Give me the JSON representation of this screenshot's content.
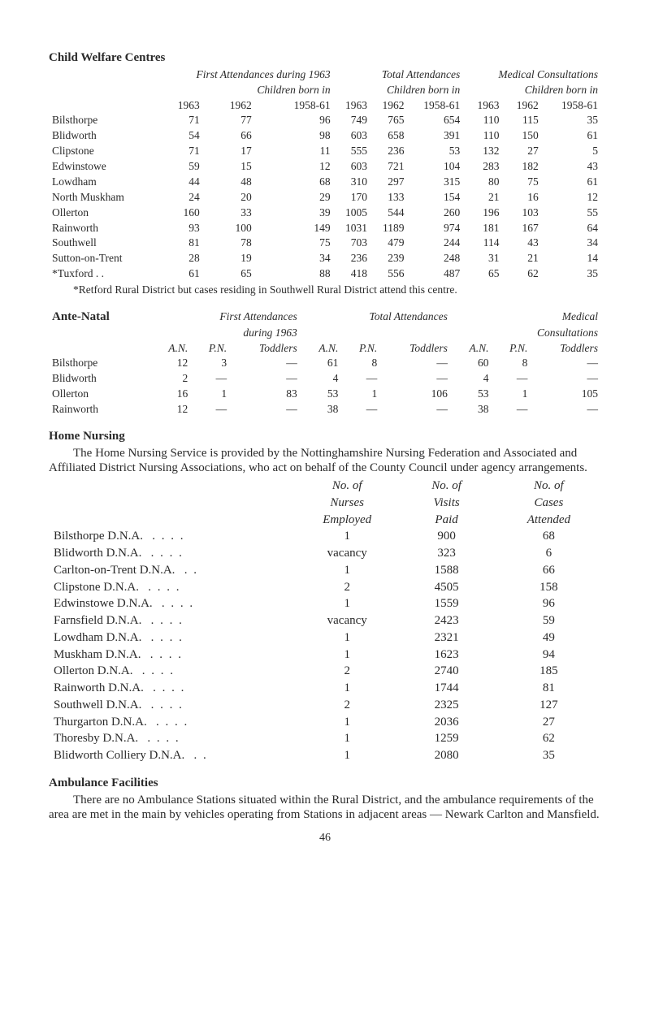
{
  "childWelfare": {
    "heading": "Child Welfare Centres",
    "group1": "First Attendances during 1963",
    "group2": "Total Attendances",
    "group3": "Medical Consultations",
    "subhead": "Children born in",
    "years": [
      "1963",
      "1962",
      "1958-61",
      "1963",
      "1962",
      "1958-61",
      "1963",
      "1962",
      "1958-61"
    ],
    "rows": [
      {
        "label": "Bilsthorpe",
        "v": [
          "71",
          "77",
          "96",
          "749",
          "765",
          "654",
          "110",
          "115",
          "35"
        ]
      },
      {
        "label": "Blidworth",
        "v": [
          "54",
          "66",
          "98",
          "603",
          "658",
          "391",
          "110",
          "150",
          "61"
        ]
      },
      {
        "label": "Clipstone",
        "v": [
          "71",
          "17",
          "11",
          "555",
          "236",
          "53",
          "132",
          "27",
          "5"
        ]
      },
      {
        "label": "Edwinstowe",
        "v": [
          "59",
          "15",
          "12",
          "603",
          "721",
          "104",
          "283",
          "182",
          "43"
        ]
      },
      {
        "label": "Lowdham",
        "v": [
          "44",
          "48",
          "68",
          "310",
          "297",
          "315",
          "80",
          "75",
          "61"
        ]
      },
      {
        "label": "North Muskham",
        "v": [
          "24",
          "20",
          "29",
          "170",
          "133",
          "154",
          "21",
          "16",
          "12"
        ]
      },
      {
        "label": "Ollerton",
        "v": [
          "160",
          "33",
          "39",
          "1005",
          "544",
          "260",
          "196",
          "103",
          "55"
        ]
      },
      {
        "label": "Rainworth",
        "v": [
          "93",
          "100",
          "149",
          "1031",
          "1189",
          "974",
          "181",
          "167",
          "64"
        ]
      },
      {
        "label": "Southwell",
        "v": [
          "81",
          "78",
          "75",
          "703",
          "479",
          "244",
          "114",
          "43",
          "34"
        ]
      },
      {
        "label": "Sutton-on-Trent",
        "v": [
          "28",
          "19",
          "34",
          "236",
          "239",
          "248",
          "31",
          "21",
          "14"
        ]
      },
      {
        "label": "*Tuxford",
        "dots": ". .",
        "v": [
          "61",
          "65",
          "88",
          "418",
          "556",
          "487",
          "65",
          "62",
          "35"
        ]
      }
    ],
    "footnote": "*Retford Rural District but cases residing in Southwell Rural District attend this centre."
  },
  "anteNatal": {
    "heading": "Ante-Natal",
    "group1a": "First Attendances",
    "group1b": "during 1963",
    "group2": "Total Attendances",
    "group3a": "Medical",
    "group3b": "Consultations",
    "cols": [
      "A.N.",
      "P.N.",
      "Toddlers",
      "A.N.",
      "P.N.",
      "Toddlers",
      "A.N.",
      "P.N.",
      "Toddlers"
    ],
    "rows": [
      {
        "label": "Bilsthorpe",
        "v": [
          "12",
          "3",
          "—",
          "61",
          "8",
          "—",
          "60",
          "8",
          "—"
        ]
      },
      {
        "label": "Blidworth",
        "v": [
          "2",
          "—",
          "—",
          "4",
          "—",
          "—",
          "4",
          "—",
          "—"
        ]
      },
      {
        "label": "Ollerton",
        "v": [
          "16",
          "1",
          "83",
          "53",
          "1",
          "106",
          "53",
          "1",
          "105"
        ]
      },
      {
        "label": "Rainworth",
        "v": [
          "12",
          "—",
          "—",
          "38",
          "—",
          "—",
          "38",
          "—",
          "—"
        ]
      }
    ]
  },
  "homeNursing": {
    "heading": "Home Nursing",
    "paragraph": "The Home Nursing Service is provided by the Nottinghamshire Nursing Federation and Associated and Affiliated District Nursing Associations, who act on behalf of the County Council under agency arrangements.",
    "hdr1a": "No. of",
    "hdr1b": "Nurses",
    "hdr1c": "Employed",
    "hdr2a": "No. of",
    "hdr2b": "Visits",
    "hdr2c": "Paid",
    "hdr3a": "No. of",
    "hdr3b": "Cases",
    "hdr3c": "Attended",
    "rows": [
      {
        "label": "Bilsthorpe D.N.A.",
        "dots": ". .     . .",
        "c1": "1",
        "c2": "900",
        "c3": "68"
      },
      {
        "label": "Blidworth D.N.A.",
        "dots": ". .     . .",
        "c1": "vacancy",
        "c2": "323",
        "c3": "6"
      },
      {
        "label": "Carlton-on-Trent D.N.A.",
        "dots": ". .",
        "c1": "1",
        "c2": "1588",
        "c3": "66"
      },
      {
        "label": "Clipstone D.N.A.",
        "dots": ". .     . .",
        "c1": "2",
        "c2": "4505",
        "c3": "158"
      },
      {
        "label": "Edwinstowe D.N.A.",
        "dots": ". .     . .",
        "c1": "1",
        "c2": "1559",
        "c3": "96"
      },
      {
        "label": "Farnsfield D.N.A.",
        "dots": ". .     . .",
        "c1": "vacancy",
        "c2": "2423",
        "c3": "59"
      },
      {
        "label": "Lowdham D.N.A.",
        "dots": ". .     . .",
        "c1": "1",
        "c2": "2321",
        "c3": "49"
      },
      {
        "label": "Muskham D.N.A.",
        "dots": ". .     . .",
        "c1": "1",
        "c2": "1623",
        "c3": "94"
      },
      {
        "label": "Ollerton D.N.A.",
        "dots": ". .     . .",
        "c1": "2",
        "c2": "2740",
        "c3": "185"
      },
      {
        "label": "Rainworth D.N.A.",
        "dots": ". .     . .",
        "c1": "1",
        "c2": "1744",
        "c3": "81"
      },
      {
        "label": "Southwell D.N.A.",
        "dots": ". .     . .",
        "c1": "2",
        "c2": "2325",
        "c3": "127"
      },
      {
        "label": "Thurgarton D.N.A.",
        "dots": ". .     . .",
        "c1": "1",
        "c2": "2036",
        "c3": "27"
      },
      {
        "label": "Thoresby D.N.A.",
        "dots": ". .     . .",
        "c1": "1",
        "c2": "1259",
        "c3": "62"
      },
      {
        "label": "Blidworth Colliery D.N.A.",
        "dots": ". .",
        "c1": "1",
        "c2": "2080",
        "c3": "35"
      }
    ]
  },
  "ambulance": {
    "heading": "Ambulance Facilities",
    "paragraph": "There are no Ambulance Stations situated within the Rural District, and the ambulance requirements of the area are met in the main by vehicles operating from Stations in adjacent areas — Newark Carlton and Mansfield."
  },
  "pageNumber": "46"
}
